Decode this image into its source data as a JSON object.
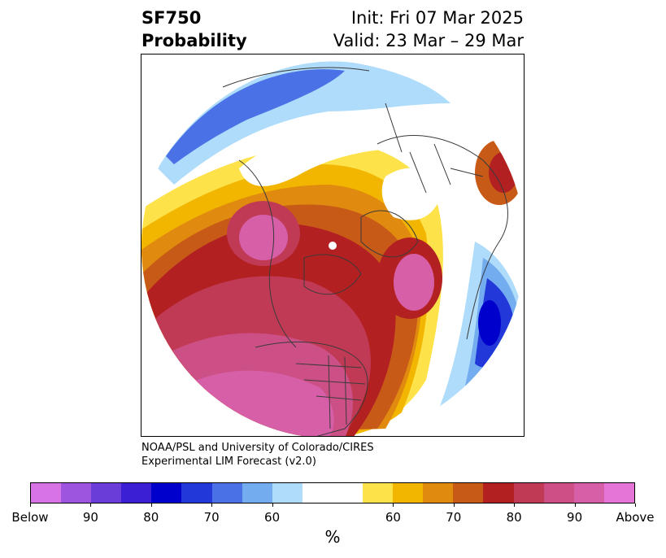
{
  "title": {
    "left_line1": "SF750",
    "left_line2": "Probability",
    "right_line1": "Init: Fri 07 Mar 2025",
    "right_line2": "Valid: 23 Mar – 29 Mar"
  },
  "credit": {
    "line1": "NOAA/PSL and University of Colorado/CIRES",
    "line2": "Experimental LIM Forecast (v2.0)"
  },
  "map": {
    "projection": "north-polar-stereographic",
    "field": "SF750 probability",
    "pole_marker": "white-dot",
    "features": [
      "coastlines",
      "country-borders",
      "us-state-borders"
    ]
  },
  "colorbar": {
    "unit": "%",
    "colors": [
      "#d873e6",
      "#9d55e0",
      "#6a3dd8",
      "#3a1fd4",
      "#0000cc",
      "#2238d8",
      "#4a72e6",
      "#74acf0",
      "#aedcfa",
      "#ffffff",
      "#ffffff",
      "#fde24a",
      "#f2b600",
      "#e08a10",
      "#c85a18",
      "#b32022",
      "#c13a55",
      "#cc5085",
      "#d65fa8",
      "#e675d8"
    ],
    "tick_labels": [
      "Below",
      "90",
      "80",
      "70",
      "60",
      "60",
      "70",
      "80",
      "90",
      "Above"
    ]
  }
}
